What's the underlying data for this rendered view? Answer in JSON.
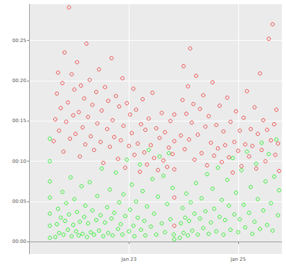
{
  "chart_data": {
    "type": "scatter",
    "grid": true,
    "xlim": [
      21.17,
      25.8
    ],
    "xticks": [
      {
        "value": 23,
        "label": "Jan 23"
      },
      {
        "value": 25,
        "label": "Jan 25"
      }
    ],
    "ylim": [
      -1.5,
      29.5
    ],
    "yticks": [
      {
        "value": 0,
        "label": "00:00"
      },
      {
        "value": 5,
        "label": "00:05"
      },
      {
        "value": 10,
        "label": "00:10"
      },
      {
        "value": 15,
        "label": "00:15"
      },
      {
        "value": 20,
        "label": "00:20"
      },
      {
        "value": 25,
        "label": "00:25"
      }
    ],
    "series": [
      {
        "color": "#00ee00",
        "marker": "open_circle",
        "x": [
          21.55,
          21.55,
          21.55,
          21.55,
          21.55,
          21.55,
          21.55,
          21.65,
          21.68,
          21.7,
          21.72,
          21.75,
          21.78,
          21.8,
          21.83,
          21.85,
          21.88,
          21.9,
          21.93,
          21.95,
          21.98,
          22.0,
          22.03,
          22.05,
          22.08,
          22.1,
          22.13,
          22.15,
          22.18,
          22.2,
          22.23,
          22.25,
          22.28,
          22.3,
          22.33,
          22.36,
          22.4,
          22.42,
          22.45,
          22.48,
          22.5,
          22.53,
          22.56,
          22.6,
          22.62,
          22.65,
          22.68,
          22.7,
          22.73,
          22.76,
          22.8,
          22.82,
          22.85,
          22.88,
          22.9,
          22.93,
          22.96,
          23.0,
          23.02,
          23.05,
          23.08,
          23.1,
          23.13,
          23.16,
          23.2,
          23.22,
          23.25,
          23.28,
          23.3,
          23.33,
          23.36,
          23.4,
          23.43,
          23.46,
          23.5,
          23.53,
          23.56,
          23.6,
          23.63,
          23.66,
          23.7,
          23.73,
          23.76,
          23.8,
          23.82,
          23.83,
          23.93,
          23.95,
          23.98,
          24.0,
          24.03,
          24.05,
          24.08,
          24.1,
          24.13,
          24.16,
          24.2,
          24.23,
          24.26,
          24.3,
          24.33,
          24.36,
          24.4,
          24.43,
          24.46,
          24.5,
          24.53,
          24.56,
          24.6,
          24.63,
          24.66,
          24.7,
          24.73,
          24.76,
          24.8,
          24.83,
          24.86,
          24.9,
          24.93,
          24.96,
          25.0,
          25.03,
          25.06,
          25.1,
          25.13,
          25.16,
          25.2,
          25.23,
          25.26,
          25.3,
          25.33,
          25.36,
          25.4,
          25.43,
          25.46,
          25.5,
          25.53,
          25.56,
          25.6,
          25.63,
          25.66,
          25.7,
          25.73,
          25.75
        ],
        "values": [
          0.5,
          2.0,
          3.5,
          5.5,
          7.5,
          10.0,
          12.8,
          0.6,
          2.2,
          4.1,
          1.1,
          3.0,
          6.2,
          0.9,
          2.6,
          4.8,
          1.5,
          3.4,
          8.0,
          0.7,
          2.1,
          5.3,
          1.3,
          3.7,
          0.8,
          2.5,
          6.9,
          1.0,
          3.1,
          4.5,
          0.6,
          2.3,
          7.4,
          1.2,
          3.9,
          0.9,
          2.7,
          5.7,
          1.4,
          3.3,
          9.1,
          0.7,
          2.4,
          4.3,
          1.1,
          6.5,
          2.9,
          0.8,
          3.6,
          8.6,
          1.6,
          4.9,
          2.2,
          0.9,
          5.9,
          3.2,
          10.2,
          1.3,
          4.0,
          7.1,
          2.0,
          0.7,
          5.0,
          3.0,
          9.6,
          1.5,
          6.3,
          2.6,
          0.8,
          4.4,
          11.4,
          1.9,
          7.8,
          3.5,
          0.9,
          5.6,
          10.6,
          2.3,
          8.2,
          1.2,
          4.7,
          11.0,
          2.8,
          6.7,
          0.9,
          0.3,
          0.5,
          2.3,
          4.2,
          1.1,
          3.0,
          6.0,
          0.8,
          2.6,
          4.9,
          1.4,
          3.5,
          7.3,
          0.9,
          2.9,
          5.4,
          1.7,
          3.8,
          8.4,
          1.0,
          2.4,
          6.6,
          4.1,
          1.3,
          9.2,
          3.1,
          5.2,
          0.9,
          2.7,
          7.7,
          4.5,
          1.5,
          10.4,
          3.4,
          6.1,
          1.2,
          2.8,
          8.9,
          4.6,
          1.8,
          11.2,
          3.6,
          6.8,
          1.0,
          2.5,
          9.7,
          5.3,
          1.6,
          12.3,
          3.9,
          7.5,
          2.1,
          10.9,
          4.8,
          1.4,
          8.1,
          12.7,
          3.3,
          6.4
        ]
      },
      {
        "color": "#ee2020",
        "marker": "open_circle",
        "x": [
          21.62,
          21.65,
          21.68,
          21.7,
          21.72,
          21.75,
          21.78,
          21.8,
          21.82,
          21.85,
          21.88,
          21.9,
          21.92,
          21.95,
          21.98,
          22.0,
          22.02,
          22.05,
          22.08,
          22.1,
          22.12,
          22.15,
          22.18,
          22.2,
          22.22,
          22.25,
          22.28,
          22.3,
          22.33,
          22.36,
          22.4,
          22.42,
          22.45,
          22.48,
          22.5,
          22.53,
          22.56,
          22.6,
          22.62,
          22.65,
          22.68,
          22.7,
          22.73,
          22.76,
          22.8,
          22.82,
          22.85,
          22.88,
          22.9,
          22.93,
          22.96,
          23.0,
          23.02,
          23.05,
          23.08,
          23.1,
          23.13,
          23.16,
          23.2,
          23.22,
          23.25,
          23.28,
          23.3,
          23.33,
          23.36,
          23.4,
          23.43,
          23.46,
          23.5,
          23.53,
          23.56,
          23.6,
          23.63,
          23.66,
          23.7,
          23.73,
          23.76,
          23.8,
          23.83,
          23.83,
          23.83,
          23.83,
          23.83,
          23.95,
          23.98,
          24.0,
          24.02,
          24.05,
          24.08,
          24.1,
          24.12,
          24.15,
          24.18,
          24.2,
          24.23,
          24.26,
          24.3,
          24.33,
          24.36,
          24.4,
          24.43,
          24.46,
          24.5,
          24.53,
          24.56,
          24.6,
          24.63,
          24.66,
          24.7,
          24.73,
          24.76,
          24.8,
          24.83,
          24.86,
          24.9,
          24.93,
          24.96,
          25.0,
          25.03,
          25.06,
          25.1,
          25.13,
          25.16,
          25.2,
          25.23,
          25.26,
          25.3,
          25.33,
          25.36,
          25.4,
          25.43,
          25.46,
          25.5,
          25.53,
          25.56,
          25.6,
          25.63,
          25.66,
          25.68,
          25.7,
          25.73,
          25.75
        ],
        "values": [
          12.5,
          15.2,
          18.4,
          21.0,
          13.8,
          16.6,
          19.7,
          11.2,
          23.5,
          14.9,
          17.3,
          29.1,
          12.8,
          20.8,
          15.7,
          18.9,
          13.4,
          22.3,
          16.1,
          10.6,
          19.4,
          14.2,
          17.8,
          12.1,
          24.6,
          15.5,
          20.1,
          13.1,
          17.0,
          11.4,
          18.6,
          14.7,
          21.4,
          12.4,
          16.3,
          9.8,
          19.2,
          14.0,
          17.5,
          11.8,
          22.8,
          15.1,
          13.0,
          18.1,
          10.3,
          16.8,
          12.6,
          20.3,
          14.4,
          9.2,
          17.2,
          11.9,
          15.8,
          13.5,
          19.0,
          10.8,
          16.4,
          12.2,
          8.7,
          14.6,
          17.7,
          11.1,
          13.9,
          9.6,
          15.3,
          12.0,
          18.5,
          10.4,
          14.1,
          8.9,
          12.9,
          16.0,
          10.1,
          13.6,
          9.3,
          11.7,
          15.0,
          10.9,
          2.0,
          5.5,
          9.0,
          12.5,
          15.8,
          13.2,
          17.6,
          21.8,
          11.5,
          15.9,
          19.3,
          12.7,
          24.0,
          14.8,
          17.1,
          10.2,
          20.6,
          13.3,
          16.5,
          11.0,
          18.2,
          14.3,
          9.5,
          15.6,
          12.3,
          19.8,
          10.7,
          14.5,
          11.6,
          16.9,
          9.9,
          13.7,
          12.0,
          17.9,
          10.5,
          14.9,
          8.6,
          12.4,
          16.2,
          11.3,
          13.8,
          9.4,
          15.4,
          12.1,
          18.7,
          10.6,
          14.0,
          11.9,
          16.7,
          9.1,
          13.4,
          20.9,
          11.4,
          15.1,
          10.0,
          13.9,
          25.2,
          12.6,
          27.0,
          14.6,
          10.8,
          16.4,
          12.2,
          8.8
        ]
      }
    ]
  }
}
